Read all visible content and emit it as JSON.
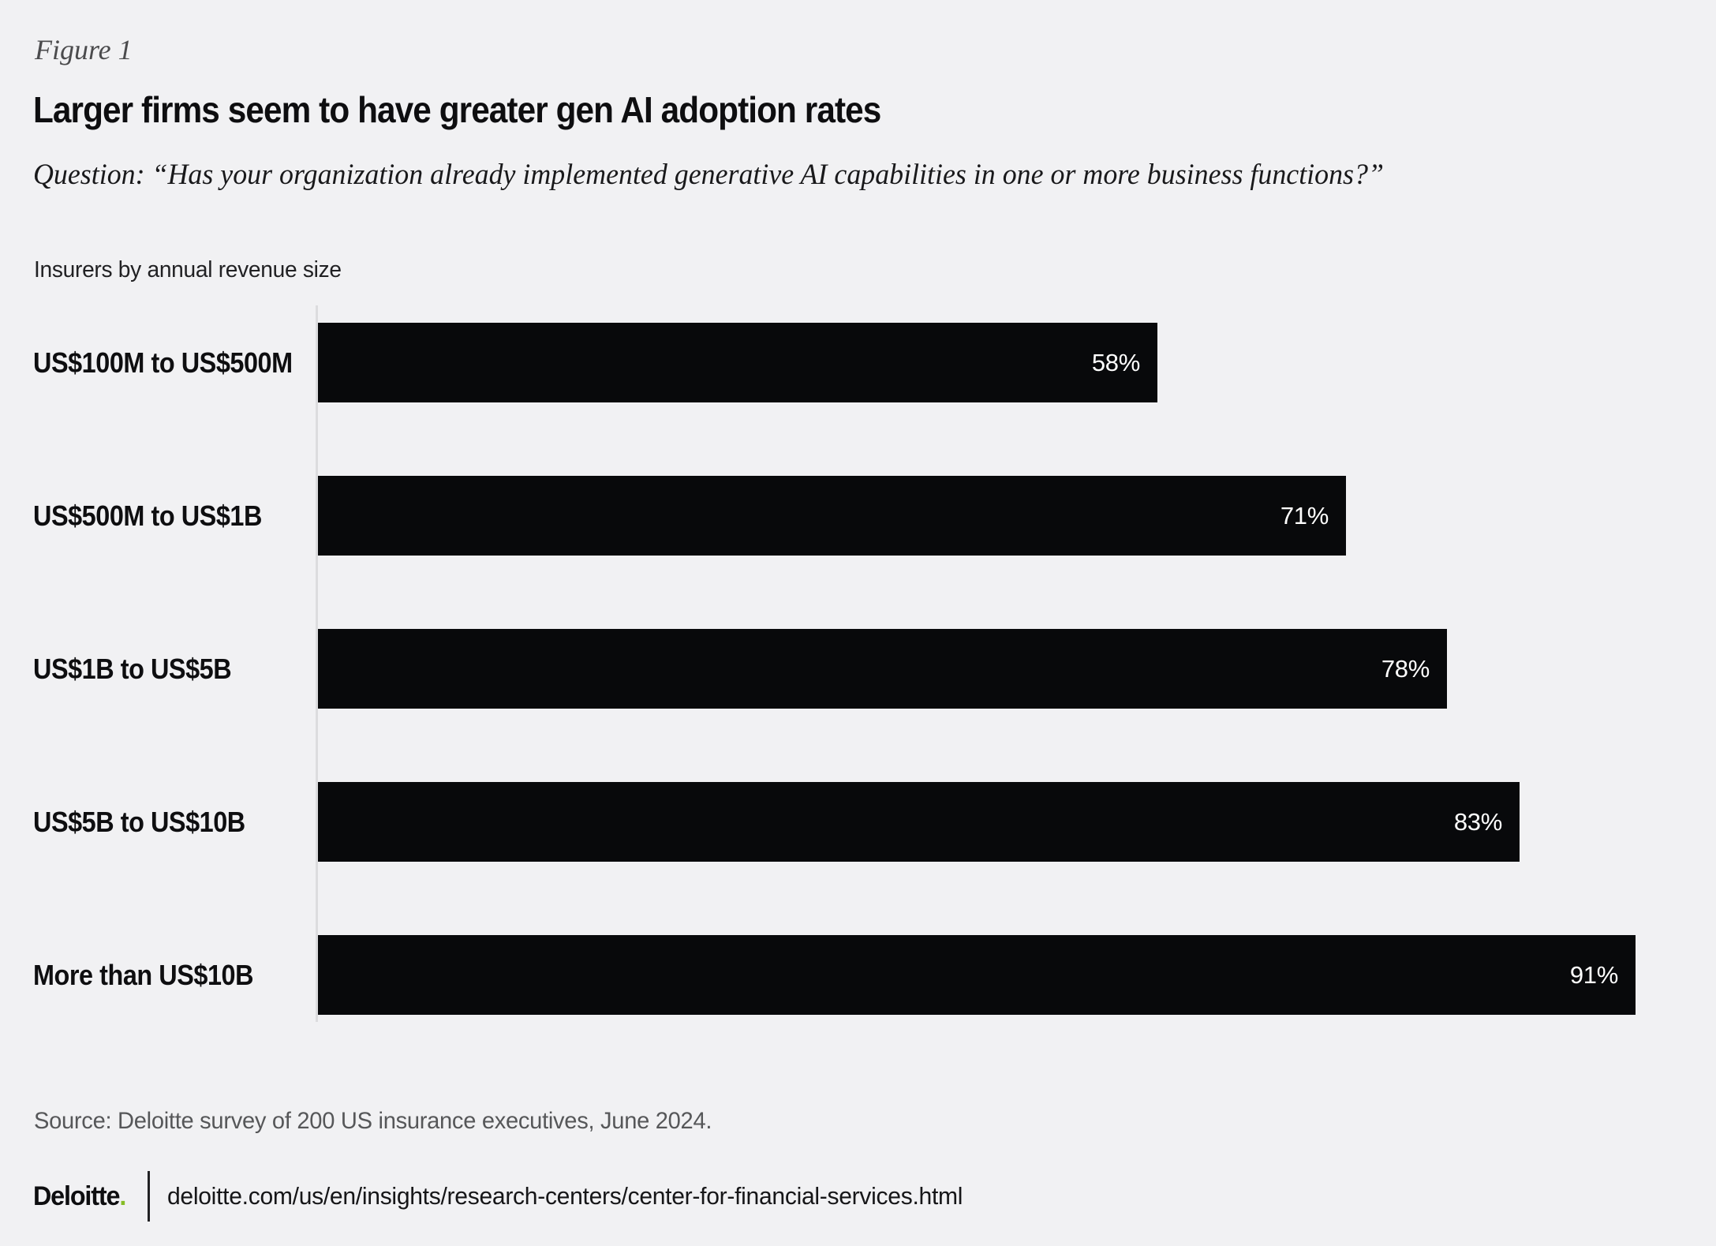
{
  "figure_label": "Figure 1",
  "title": "Larger firms seem to have greater gen AI adoption rates",
  "question": "Question: “Has your organization already implemented generative AI capabilities in one or more business functions?”",
  "chart_data": {
    "type": "bar",
    "orientation": "horizontal",
    "subtitle": "Insurers by annual revenue size",
    "categories": [
      "US$100M to US$500M",
      "US$500M to US$1B",
      "US$1B to US$5B",
      "US$5B to US$10B",
      "More than US$10B"
    ],
    "values": [
      58,
      71,
      78,
      83,
      91
    ],
    "unit": "%",
    "value_labels": [
      "58%",
      "71%",
      "78%",
      "83%",
      "91%"
    ],
    "xlim": [
      0,
      100
    ],
    "grid": false,
    "legend": false,
    "bar_color": "#08090b",
    "value_label_color": "#ffffff",
    "value_label_position": "inside-end"
  },
  "source": "Source: Deloitte survey of 200 US insurance executives, June 2024.",
  "footer": {
    "brand": "Deloitte",
    "brand_dot": ".",
    "url": "deloitte.com/us/en/insights/research-centers/center-for-financial-services.html"
  },
  "colors": {
    "background": "#f1f1f3",
    "bar": "#08090b",
    "axis_line": "#dcdcde",
    "figure_label_text": "#4b4b4d",
    "title_text": "#0e0e10",
    "source_text": "#565759",
    "brand_dot": "#86bc25"
  }
}
